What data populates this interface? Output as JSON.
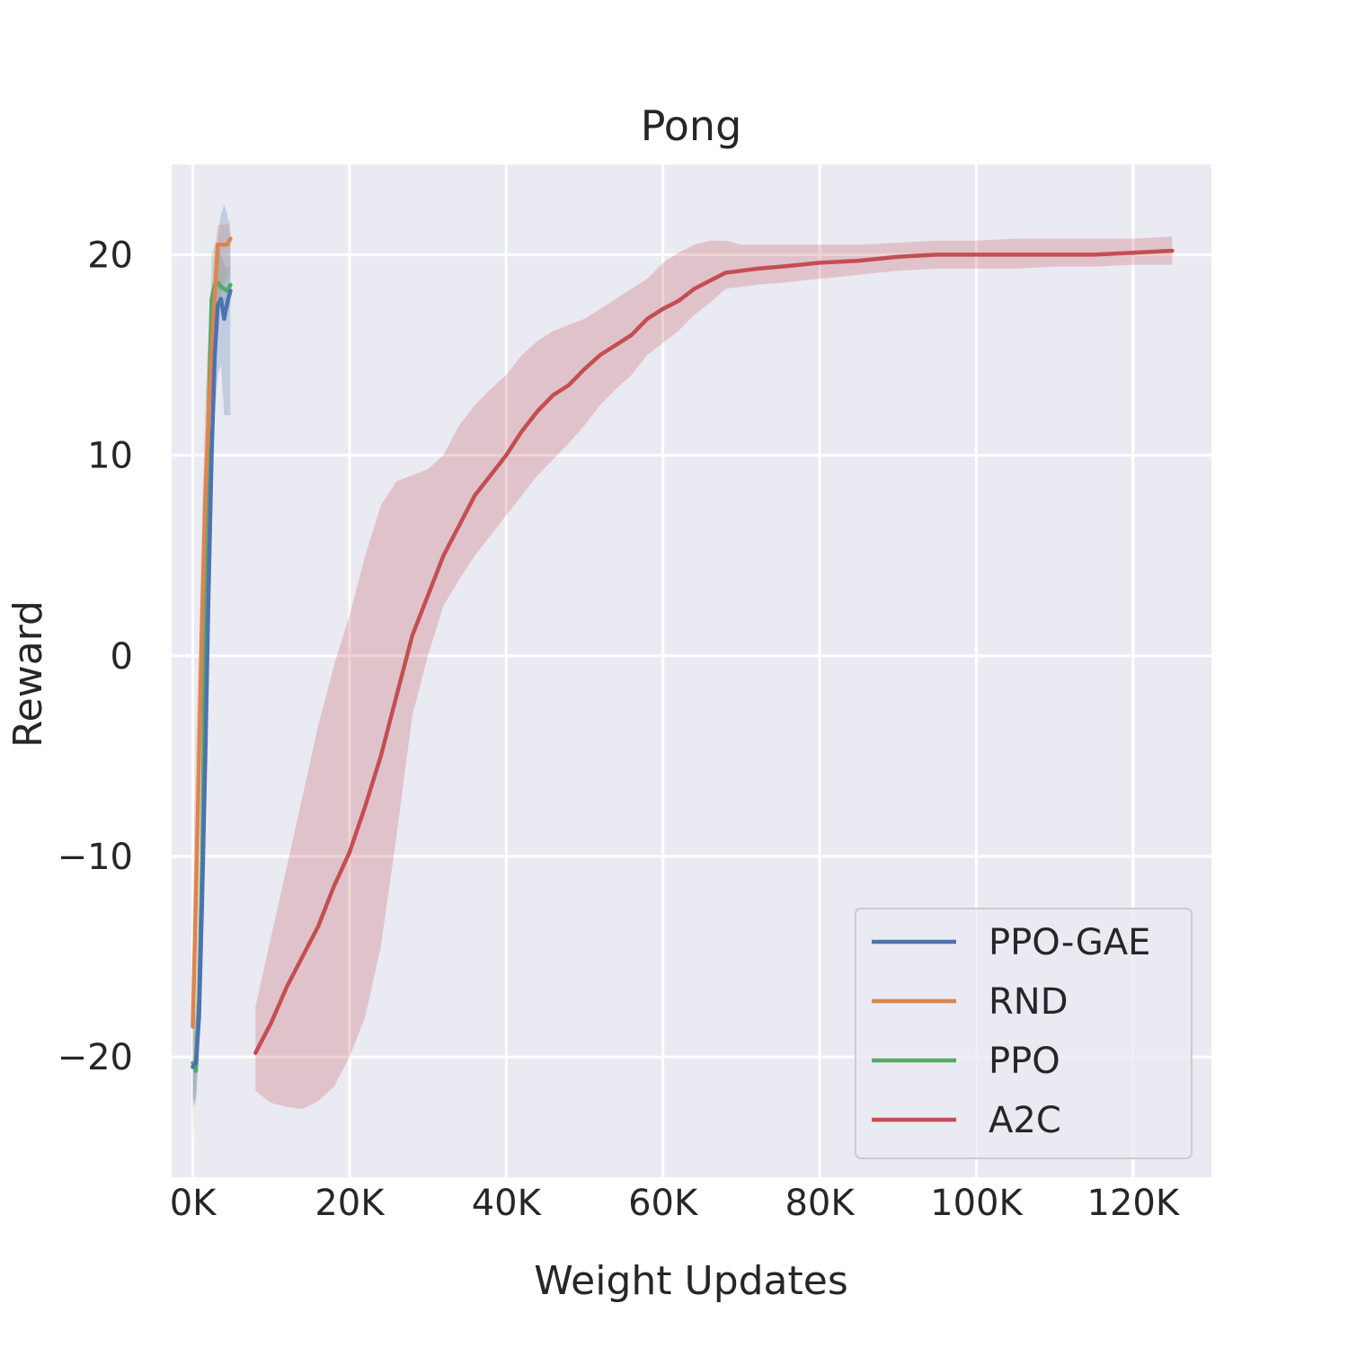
{
  "chart_data": {
    "type": "line",
    "title": "Pong",
    "xlabel": "Weight Updates",
    "ylabel": "Reward",
    "xlim": [
      -2700,
      130000
    ],
    "ylim": [
      -26,
      24.5
    ],
    "x_ticks": [
      {
        "value": 0,
        "label": "0K"
      },
      {
        "value": 20000,
        "label": "20K"
      },
      {
        "value": 40000,
        "label": "40K"
      },
      {
        "value": 60000,
        "label": "60K"
      },
      {
        "value": 80000,
        "label": "80K"
      },
      {
        "value": 100000,
        "label": "100K"
      },
      {
        "value": 120000,
        "label": "120K"
      }
    ],
    "y_ticks": [
      {
        "value": -20,
        "label": "−20"
      },
      {
        "value": -10,
        "label": "−10"
      },
      {
        "value": 0,
        "label": "0"
      },
      {
        "value": 10,
        "label": "10"
      },
      {
        "value": 20,
        "label": "20"
      }
    ],
    "grid": true,
    "legend_position": "bottom-right",
    "series": [
      {
        "name": "PPO-GAE",
        "color": "#4c72b0",
        "x": [
          0,
          400,
          800,
          1200,
          1600,
          2000,
          2400,
          2800,
          3200,
          3600,
          4000,
          4400,
          4800
        ],
        "y": [
          -20.5,
          -20.3,
          -18,
          -12,
          -5,
          3,
          10,
          15,
          17.5,
          17.8,
          16.8,
          17.6,
          18.2
        ],
        "lower": [
          -22.5,
          -22,
          -20,
          -14,
          -7,
          1,
          8,
          12,
          14,
          14.5,
          12,
          12,
          12
        ],
        "upper": [
          -18.5,
          -18,
          -16,
          -10,
          -3,
          5,
          12,
          18,
          21,
          22,
          22.5,
          22,
          21
        ]
      },
      {
        "name": "RND",
        "color": "#dd8452",
        "x": [
          0,
          400,
          800,
          1200,
          1600,
          2000,
          2400,
          2800,
          3200,
          3600,
          4000,
          4400,
          4800
        ],
        "y": [
          -18.5,
          -12,
          -5,
          2,
          8,
          12,
          15,
          18,
          20.5,
          20.5,
          20.5,
          20.5,
          20.8
        ],
        "lower": [
          -24.5,
          -20,
          -11,
          -3,
          3,
          8,
          12,
          15,
          17.5,
          18,
          18.5,
          19,
          19.5
        ],
        "upper": [
          -12.5,
          -4,
          1,
          7,
          13,
          16,
          18,
          20.5,
          21.5,
          21.5,
          21.5,
          21.5,
          21.8
        ]
      },
      {
        "name": "PPO",
        "color": "#55a868",
        "x": [
          0,
          400,
          800,
          1200,
          1600,
          2000,
          2400,
          2800,
          3200,
          3600,
          4000,
          4400,
          4800
        ],
        "y": [
          -20.3,
          -20.7,
          -17,
          -10,
          2,
          12,
          17.8,
          18.5,
          18.6,
          18.4,
          18.3,
          18.2,
          18.5
        ],
        "lower": [
          -22,
          -22.5,
          -19,
          -12,
          0,
          10,
          16,
          17,
          17.5,
          17.3,
          17.2,
          17.2,
          17.5
        ],
        "upper": [
          -18.5,
          -19,
          -15,
          -8,
          4,
          14,
          20,
          20.5,
          20.5,
          20,
          19.5,
          19.3,
          19.5
        ]
      },
      {
        "name": "A2C",
        "color": "#c44e52",
        "x": [
          8000,
          10000,
          12000,
          14000,
          16000,
          18000,
          20000,
          22000,
          24000,
          26000,
          28000,
          30000,
          32000,
          34000,
          36000,
          38000,
          40000,
          42000,
          44000,
          46000,
          48000,
          50000,
          52000,
          54000,
          56000,
          58000,
          60000,
          62000,
          64000,
          66000,
          68000,
          70000,
          72000,
          75000,
          80000,
          85000,
          90000,
          95000,
          100000,
          105000,
          110000,
          115000,
          120000,
          125000
        ],
        "y": [
          -19.8,
          -18.3,
          -16.5,
          -15.0,
          -13.5,
          -11.5,
          -9.8,
          -7.5,
          -5.0,
          -2.0,
          1.0,
          3.0,
          5.0,
          6.5,
          8.0,
          9.0,
          10.0,
          11.2,
          12.2,
          13.0,
          13.5,
          14.3,
          15.0,
          15.5,
          16.0,
          16.8,
          17.3,
          17.7,
          18.3,
          18.7,
          19.1,
          19.2,
          19.3,
          19.4,
          19.6,
          19.7,
          19.9,
          20.0,
          20.0,
          20.0,
          20.0,
          20.0,
          20.1,
          20.2
        ],
        "lower": [
          -21.7,
          -22.3,
          -22.5,
          -22.6,
          -22.2,
          -21.5,
          -20.0,
          -18.0,
          -14.5,
          -9.0,
          -3.0,
          0.0,
          2.5,
          3.8,
          5.0,
          6.0,
          7.0,
          8.0,
          9.0,
          9.8,
          10.6,
          11.5,
          12.5,
          13.3,
          14.0,
          15.0,
          15.6,
          16.2,
          17.0,
          17.6,
          18.3,
          18.4,
          18.5,
          18.6,
          18.8,
          19.0,
          19.2,
          19.3,
          19.3,
          19.3,
          19.4,
          19.4,
          19.5,
          19.5
        ],
        "upper": [
          -17.5,
          -14.0,
          -10.5,
          -7.0,
          -3.5,
          -0.5,
          2.0,
          5.0,
          7.5,
          8.7,
          9.0,
          9.3,
          10.0,
          11.5,
          12.5,
          13.3,
          14.0,
          15.0,
          15.7,
          16.2,
          16.5,
          16.8,
          17.3,
          17.8,
          18.3,
          18.8,
          19.6,
          20.1,
          20.5,
          20.7,
          20.7,
          20.5,
          20.5,
          20.5,
          20.5,
          20.5,
          20.6,
          20.7,
          20.7,
          20.8,
          20.8,
          20.8,
          20.8,
          20.9
        ]
      }
    ]
  }
}
